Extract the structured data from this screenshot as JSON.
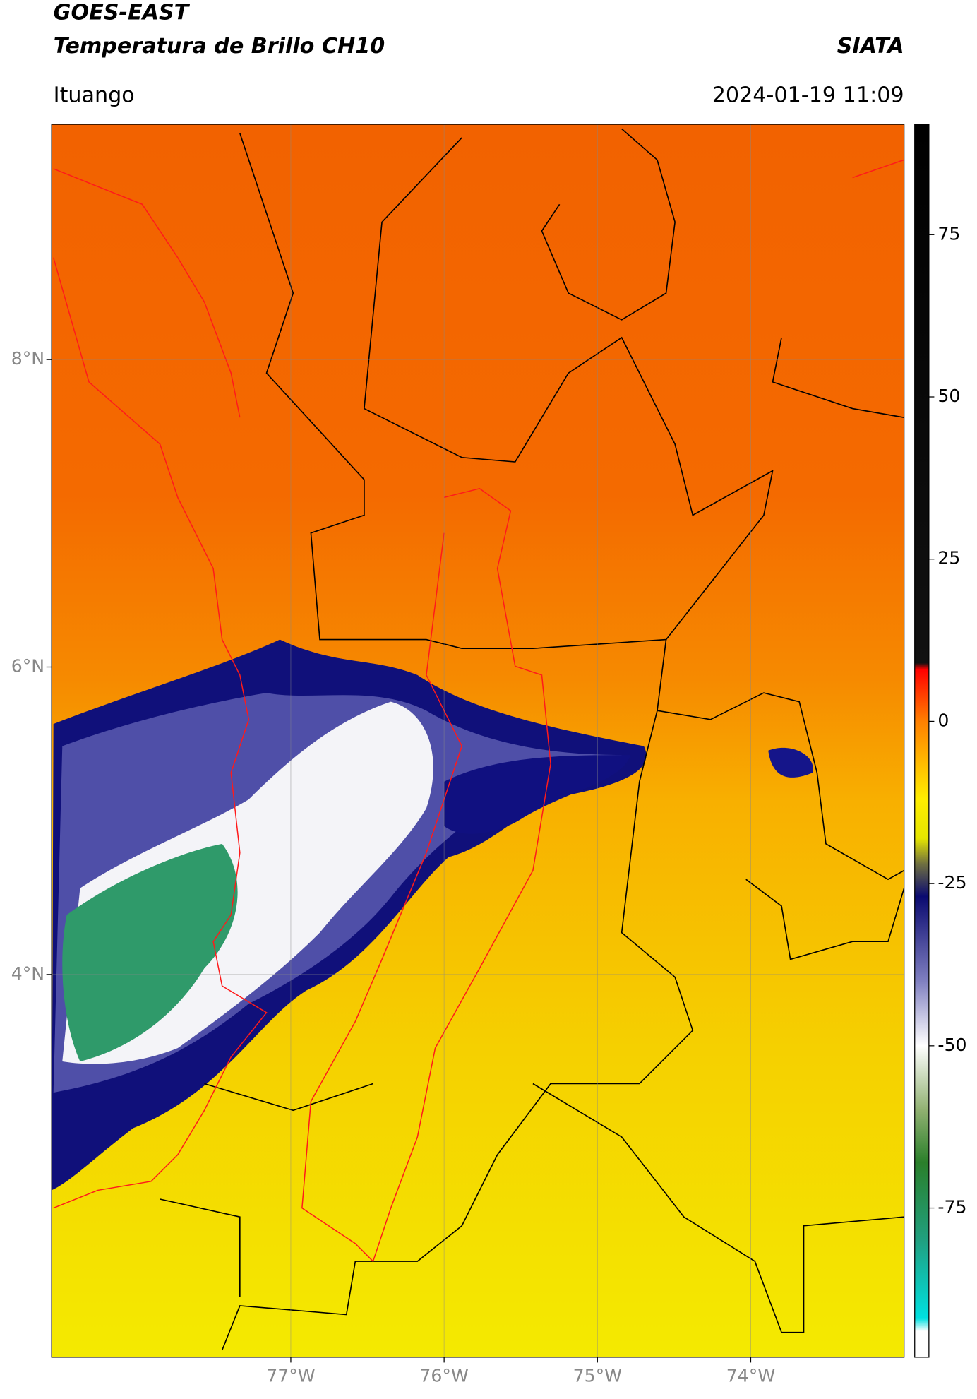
{
  "header": {
    "title": "GOES-EAST",
    "subtitle": "Temperatura de Brillo CH10",
    "brand": "SIATA",
    "location": "Ituango",
    "datetime": "2024-01-19 11:09"
  },
  "chart_data": {
    "type": "map",
    "xlim": [
      -78.56,
      -73.0
    ],
    "ylim": [
      1.51,
      9.53
    ],
    "xticks": [
      {
        "value": -77,
        "label": "77°W"
      },
      {
        "value": -76,
        "label": "76°W"
      },
      {
        "value": -75,
        "label": "75°W"
      },
      {
        "value": -74,
        "label": "74°W"
      }
    ],
    "yticks": [
      {
        "value": 8,
        "label": "8°N"
      },
      {
        "value": 6,
        "label": "6°N"
      },
      {
        "value": 4,
        "label": "4°N"
      }
    ],
    "grid": true,
    "colorbar": {
      "lim": [
        -98,
        92
      ],
      "ticks": [
        75,
        50,
        25,
        0,
        -25,
        -50,
        -75
      ],
      "stops": [
        {
          "value": 92,
          "color": "#000000"
        },
        {
          "value": 9,
          "color": "#111111"
        },
        {
          "value": 8,
          "color": "#ff0000"
        },
        {
          "value": 0,
          "color": "#ff8000"
        },
        {
          "value": -12,
          "color": "#ffee00"
        },
        {
          "value": -18,
          "color": "#e6e600"
        },
        {
          "value": -22,
          "color": "#6f6f40"
        },
        {
          "value": -27,
          "color": "#0a0a70"
        },
        {
          "value": -40,
          "color": "#7f7fc0"
        },
        {
          "value": -50,
          "color": "#ffffff"
        },
        {
          "value": -60,
          "color": "#8fb070"
        },
        {
          "value": -68,
          "color": "#2a7f2a"
        },
        {
          "value": -80,
          "color": "#20a080"
        },
        {
          "value": -92,
          "color": "#00e0e0"
        },
        {
          "value": -94,
          "color": "#ffffff"
        },
        {
          "value": -98,
          "color": "#ffffff"
        }
      ]
    }
  }
}
